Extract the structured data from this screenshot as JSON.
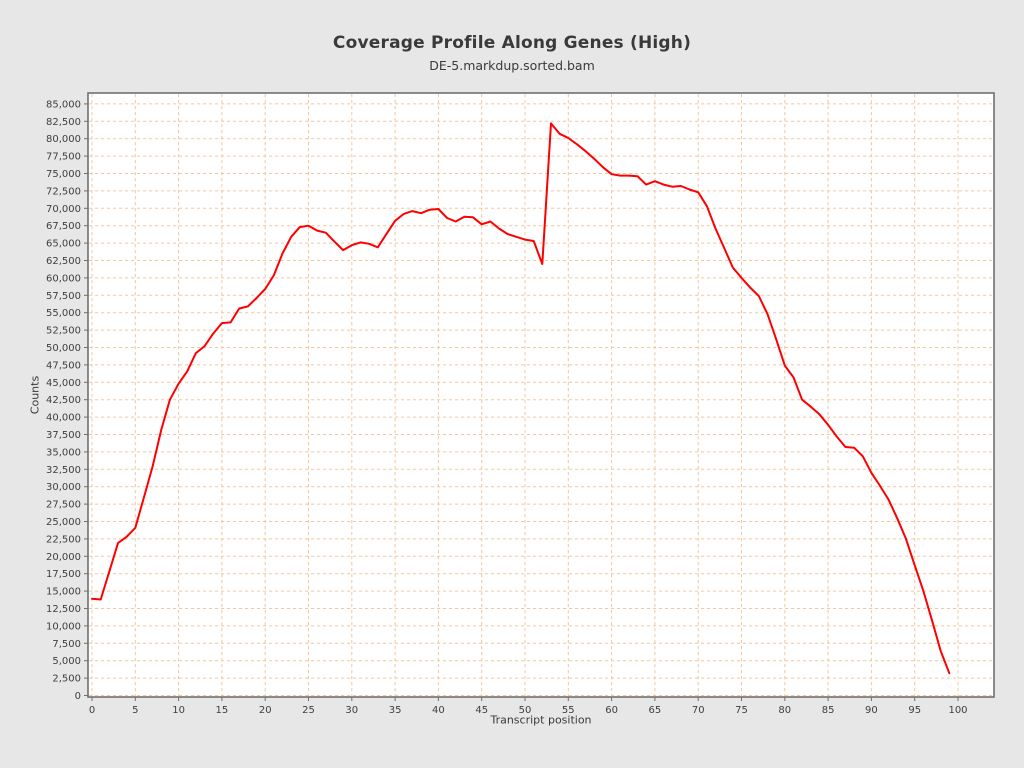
{
  "colors": {
    "background": "#e7e7e7",
    "plot_background": "#ffffff",
    "gridline": "#f1c8a0",
    "plot_border": "#6f6f6f",
    "tick_mark": "#6f6f6f",
    "title_text": "#3a3a3a",
    "tick_text": "#3f3f3f",
    "series_line": "#ff0000"
  },
  "chart_data": {
    "type": "line",
    "title": "Coverage Profile Along Genes (High)",
    "subtitle": "DE-5.markdup.sorted.bam",
    "xlabel": "Transcript position",
    "ylabel": "Counts",
    "xlim": [
      0,
      100
    ],
    "ylim": [
      0,
      85000
    ],
    "x_tick_step": 5,
    "y_tick_step": 2500,
    "grid": true,
    "grid_style": "dashed",
    "legend_position": "none",
    "series": [
      {
        "name": "DE-5.markdup.sorted.bam",
        "color": "#ff0000",
        "x": [
          0,
          1,
          2,
          3,
          4,
          5,
          6,
          7,
          8,
          9,
          10,
          11,
          12,
          13,
          14,
          15,
          16,
          17,
          18,
          19,
          20,
          21,
          22,
          23,
          24,
          25,
          26,
          27,
          28,
          29,
          30,
          31,
          32,
          33,
          34,
          35,
          36,
          37,
          38,
          39,
          40,
          41,
          42,
          43,
          44,
          45,
          46,
          47,
          48,
          49,
          50,
          51,
          52,
          53,
          54,
          55,
          56,
          57,
          58,
          59,
          60,
          61,
          62,
          63,
          64,
          65,
          66,
          67,
          68,
          69,
          70,
          71,
          72,
          73,
          74,
          75,
          76,
          77,
          78,
          79,
          80,
          81,
          82,
          83,
          84,
          85,
          86,
          87,
          88,
          89,
          90,
          91,
          92,
          93,
          94,
          95,
          96,
          97,
          98,
          99
        ],
        "values": [
          13900,
          13800,
          17800,
          21900,
          22800,
          24100,
          28500,
          32900,
          38200,
          42500,
          44800,
          46600,
          49200,
          50200,
          52000,
          53500,
          53600,
          55600,
          55900,
          57100,
          58400,
          60400,
          63500,
          65900,
          67300,
          67500,
          66800,
          66500,
          65200,
          64000,
          64700,
          65100,
          64900,
          64400,
          66300,
          68200,
          69200,
          69600,
          69300,
          69800,
          69900,
          68600,
          68100,
          68800,
          68700,
          67700,
          68100,
          67100,
          66300,
          65900,
          65500,
          65300,
          62000,
          82200,
          80700,
          80100,
          79200,
          78200,
          77100,
          75900,
          74900,
          74700,
          74700,
          74600,
          73400,
          73900,
          73400,
          73100,
          73200,
          72700,
          72300,
          70300,
          67100,
          64300,
          61500,
          60000,
          58600,
          57400,
          54800,
          51200,
          47400,
          45700,
          42500,
          41500,
          40400,
          38900,
          37200,
          35700,
          35600,
          34400,
          32000,
          30100,
          28100,
          25400,
          22500,
          18700,
          15000,
          10800,
          6400,
          3200
        ]
      }
    ]
  }
}
